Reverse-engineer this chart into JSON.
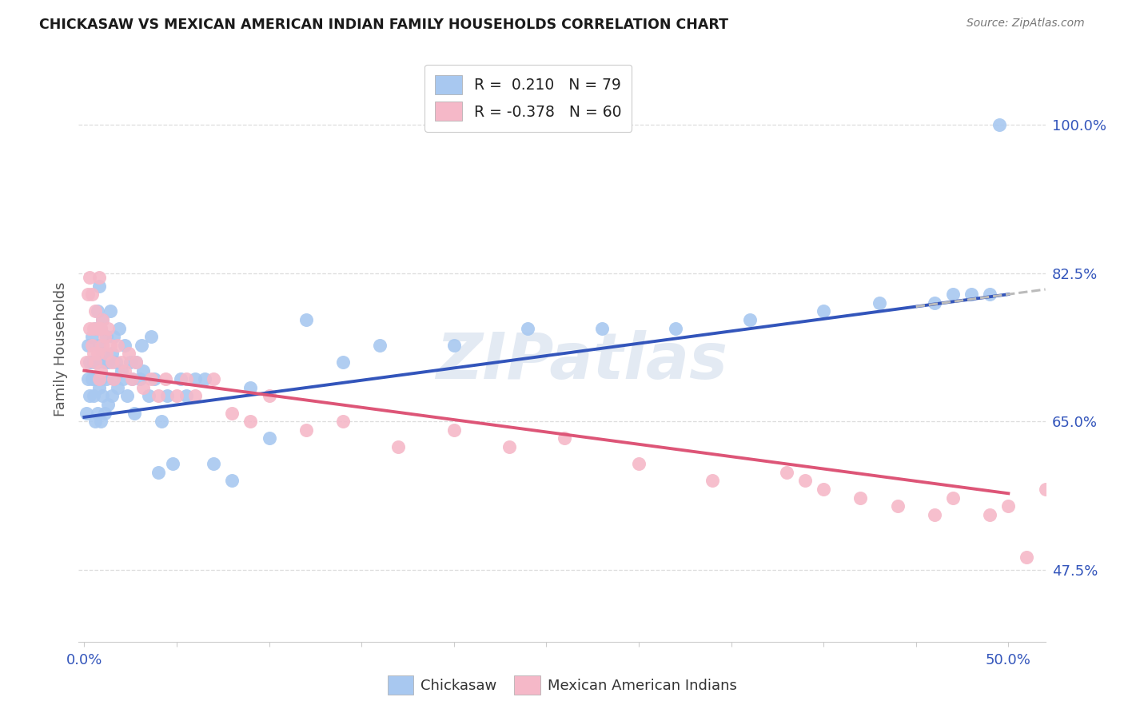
{
  "title": "CHICKASAW VS MEXICAN AMERICAN INDIAN FAMILY HOUSEHOLDS CORRELATION CHART",
  "source": "Source: ZipAtlas.com",
  "ylabel": "Family Households",
  "ytick_values": [
    0.475,
    0.65,
    0.825,
    1.0
  ],
  "ytick_labels": [
    "47.5%",
    "65.0%",
    "82.5%",
    "100.0%"
  ],
  "xlim": [
    -0.003,
    0.52
  ],
  "ylim": [
    0.39,
    1.08
  ],
  "watermark": "ZIPatlas",
  "blue_color": "#A8C8F0",
  "pink_color": "#F5B8C8",
  "blue_line_color": "#3355BB",
  "pink_line_color": "#DD5577",
  "dashed_color": "#BBBBBB",
  "grid_color": "#DDDDDD",
  "blue_line_y0": 0.655,
  "blue_line_y1": 0.8,
  "pink_line_y0": 0.71,
  "pink_line_y1": 0.565,
  "chick_x": [
    0.001,
    0.002,
    0.002,
    0.003,
    0.003,
    0.004,
    0.004,
    0.005,
    0.005,
    0.006,
    0.006,
    0.006,
    0.007,
    0.007,
    0.007,
    0.008,
    0.008,
    0.008,
    0.009,
    0.009,
    0.009,
    0.01,
    0.01,
    0.01,
    0.011,
    0.011,
    0.012,
    0.012,
    0.013,
    0.013,
    0.014,
    0.015,
    0.015,
    0.016,
    0.016,
    0.017,
    0.018,
    0.019,
    0.02,
    0.021,
    0.022,
    0.023,
    0.025,
    0.026,
    0.027,
    0.028,
    0.03,
    0.031,
    0.032,
    0.035,
    0.036,
    0.038,
    0.04,
    0.042,
    0.045,
    0.048,
    0.052,
    0.055,
    0.06,
    0.065,
    0.07,
    0.08,
    0.09,
    0.1,
    0.12,
    0.14,
    0.16,
    0.2,
    0.24,
    0.28,
    0.32,
    0.36,
    0.4,
    0.43,
    0.46,
    0.47,
    0.48,
    0.49,
    0.495
  ],
  "chick_y": [
    0.66,
    0.7,
    0.74,
    0.68,
    0.72,
    0.7,
    0.75,
    0.68,
    0.72,
    0.7,
    0.76,
    0.65,
    0.78,
    0.72,
    0.66,
    0.74,
    0.69,
    0.81,
    0.7,
    0.76,
    0.65,
    0.73,
    0.68,
    0.77,
    0.72,
    0.66,
    0.7,
    0.75,
    0.72,
    0.67,
    0.78,
    0.73,
    0.68,
    0.75,
    0.7,
    0.72,
    0.69,
    0.76,
    0.71,
    0.7,
    0.74,
    0.68,
    0.72,
    0.7,
    0.66,
    0.72,
    0.7,
    0.74,
    0.71,
    0.68,
    0.75,
    0.7,
    0.59,
    0.65,
    0.68,
    0.6,
    0.7,
    0.68,
    0.7,
    0.7,
    0.6,
    0.58,
    0.69,
    0.63,
    0.77,
    0.72,
    0.74,
    0.74,
    0.76,
    0.76,
    0.76,
    0.77,
    0.78,
    0.79,
    0.79,
    0.8,
    0.8,
    0.8,
    1.0
  ],
  "mex_x": [
    0.001,
    0.002,
    0.003,
    0.003,
    0.004,
    0.004,
    0.005,
    0.005,
    0.006,
    0.006,
    0.007,
    0.007,
    0.008,
    0.008,
    0.009,
    0.009,
    0.01,
    0.01,
    0.011,
    0.012,
    0.013,
    0.014,
    0.015,
    0.016,
    0.018,
    0.02,
    0.022,
    0.024,
    0.026,
    0.028,
    0.032,
    0.036,
    0.04,
    0.044,
    0.05,
    0.055,
    0.06,
    0.07,
    0.08,
    0.09,
    0.1,
    0.12,
    0.14,
    0.17,
    0.2,
    0.23,
    0.26,
    0.3,
    0.34,
    0.38,
    0.39,
    0.4,
    0.42,
    0.44,
    0.46,
    0.47,
    0.49,
    0.5,
    0.51,
    0.52
  ],
  "mex_y": [
    0.72,
    0.8,
    0.82,
    0.76,
    0.74,
    0.8,
    0.73,
    0.76,
    0.72,
    0.78,
    0.76,
    0.73,
    0.82,
    0.7,
    0.76,
    0.71,
    0.74,
    0.77,
    0.75,
    0.73,
    0.76,
    0.74,
    0.72,
    0.7,
    0.74,
    0.72,
    0.71,
    0.73,
    0.7,
    0.72,
    0.69,
    0.7,
    0.68,
    0.7,
    0.68,
    0.7,
    0.68,
    0.7,
    0.66,
    0.65,
    0.68,
    0.64,
    0.65,
    0.62,
    0.64,
    0.62,
    0.63,
    0.6,
    0.58,
    0.59,
    0.58,
    0.57,
    0.56,
    0.55,
    0.54,
    0.56,
    0.54,
    0.55,
    0.49,
    0.57
  ]
}
